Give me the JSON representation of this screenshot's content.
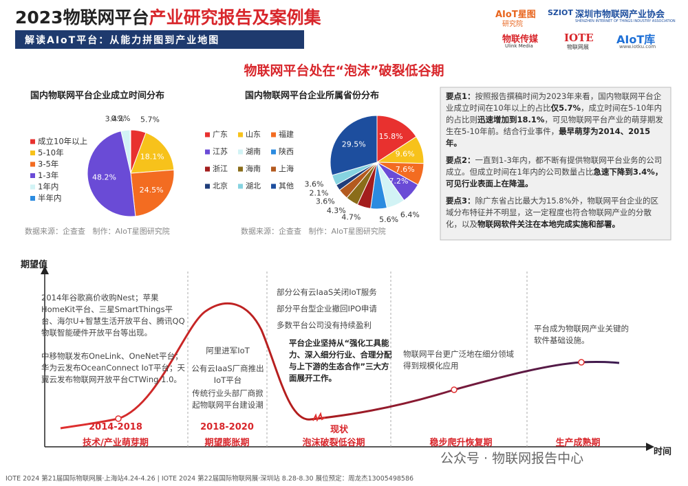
{
  "header": {
    "title_prefix": "2023物联网平台",
    "title_highlight": "产业研究报告及案例集",
    "subtitle": "解读AIoT平台：从能力拼图到产业地图",
    "logos": [
      "AIoT星图",
      "研究院",
      "SZIOT",
      "深圳市物联网产业协会",
      "SHENZHEN INTERNET OF THINGS INDUSTRY ASSOCIATION",
      "物联传媒",
      "Ulink Media",
      "IOTE",
      "物联网展",
      "AIoT库",
      "www.iotku.com"
    ]
  },
  "main_title": "物联网平台处在“泡沫”破裂低谷期",
  "chart_data": [
    {
      "type": "pie",
      "title": "国内物联网平台企业成立时间分布",
      "categories": [
        "成立10年以上",
        "5-10年",
        "3-5年",
        "1-3年",
        "1年内",
        "半年内"
      ],
      "values": [
        5.7,
        18.1,
        24.5,
        48.2,
        3.4,
        0.2
      ],
      "value_labels": [
        "5.7%",
        "18.1%",
        "24.5%",
        "48.2%",
        "3.4%",
        "0.2%"
      ],
      "colors": [
        "#e8312f",
        "#f7c21b",
        "#f36c21",
        "#6a4bd6",
        "#d2f3f5",
        "#2b8be0"
      ],
      "source": "数据来源：企查查   制作：AIoT星图研究院"
    },
    {
      "type": "pie",
      "title": "国内物联网平台企业所属省份分布",
      "categories": [
        "广东",
        "山东",
        "福建",
        "江苏",
        "湖南",
        "陕西",
        "浙江",
        "海南",
        "上海",
        "北京",
        "湖北",
        "其他"
      ],
      "values": [
        15.8,
        9.6,
        7.6,
        7.2,
        6.4,
        5.6,
        4.7,
        4.3,
        3.6,
        2.1,
        3.6,
        29.5
      ],
      "value_labels": [
        "15.8%",
        "9.6%",
        "7.6%",
        "7.2%",
        "6.4%",
        "5.6%",
        "4.7%",
        "4.3%",
        "3.6%",
        "2.1%",
        "3.6%",
        "29.5%"
      ],
      "colors": [
        "#e8312f",
        "#f7c21b",
        "#f36c21",
        "#6a4bd6",
        "#d2f3f5",
        "#2b8be0",
        "#a31d1d",
        "#8a6d1a",
        "#b35a1f",
        "#1f3d7a",
        "#86d3e0",
        "#1d4e9e"
      ],
      "source": "数据来源：企查查   制作：AIoT星图研究院"
    }
  ],
  "key_points": [
    {
      "label": "要点1：",
      "segments": [
        {
          "text": "按照报告撰稿时间为2023年来看，国内物联网平台企业成立时间在10年以上的占比",
          "bold": false
        },
        {
          "text": "仅5.7%",
          "bold": true
        },
        {
          "text": "，成立时间在5-10年内的占比则",
          "bold": false
        },
        {
          "text": "迅速增加到18.1%",
          "bold": true
        },
        {
          "text": "，可见物联网平台产业的萌芽期发生在5-10年前。结合行业事件，",
          "bold": false
        },
        {
          "text": "最早萌芽为2014、2015年。",
          "bold": true
        }
      ]
    },
    {
      "label": "要点2：",
      "segments": [
        {
          "text": "一直到1-3年内，都不断有提供物联网平台业务的公司成立。但成立时间在1年内的公司数量占比",
          "bold": false
        },
        {
          "text": "急速下降到3.4%，可见行业表面上在降温。",
          "bold": true
        }
      ]
    },
    {
      "label": "要点3：",
      "segments": [
        {
          "text": "除广东省占比最大为15.8%外，物联网平台企业的区域分布特征并不明显，这一定程度也符合物联网产业的分散化，以及",
          "bold": false
        },
        {
          "text": "物联网软件关注在本地完成实施和部署。",
          "bold": true
        }
      ]
    }
  ],
  "hype_cycle": {
    "y_axis": "期望值",
    "x_axis": "时间",
    "phases": [
      {
        "years": "2014-2018",
        "name": "技术/产业萌芽期",
        "notes": [
          "2014年谷歌高价收购Nest；苹果HomeKit平台、三星SmartThings平台、海尔U+智慧生活开放平台、腾讯QQ物联智能硬件开放平台等出现。",
          "中移物联发布OneLink、OneNet平台；华为云发布OceanConnect IoT平台；天翼云发布物联网开放平台CTWing 1.0。"
        ]
      },
      {
        "years": "2018-2020",
        "name": "期望膨胀期",
        "notes": [
          "阿里进军IoT",
          "公有云IaaS厂商推出IoT平台",
          "传统行业头部厂商掀起物联网平台建设潮"
        ]
      },
      {
        "marker": "现状",
        "name": "泡沫破裂低谷期",
        "notes": [
          "部分公有云IaaS关闭IoT服务",
          "部分平台型企业撤回IPO申请",
          "多数平台公司没有持续盈利"
        ],
        "highlight": "平台企业坚持从“强化工具能力、深入细分行业、合理分配与上下游的生态合作”三大方面展开工作。"
      },
      {
        "name": "稳步爬升恢复期",
        "notes": [
          "物联网平台更广泛地在细分领域得到规模化应用"
        ]
      },
      {
        "name": "生产成熟期",
        "notes": [
          "平台成为物联网产业关键的软件基础设施。"
        ]
      }
    ]
  },
  "footer": "IOTE 2024 第21届国际物联网展·上海站4.24-4.26 | IOTE 2024 第22届国际物联网展·深圳站 8.28-8.30 展位预定：周龙杰13005498586",
  "watermark": "公众号 · 物联网报告中心"
}
